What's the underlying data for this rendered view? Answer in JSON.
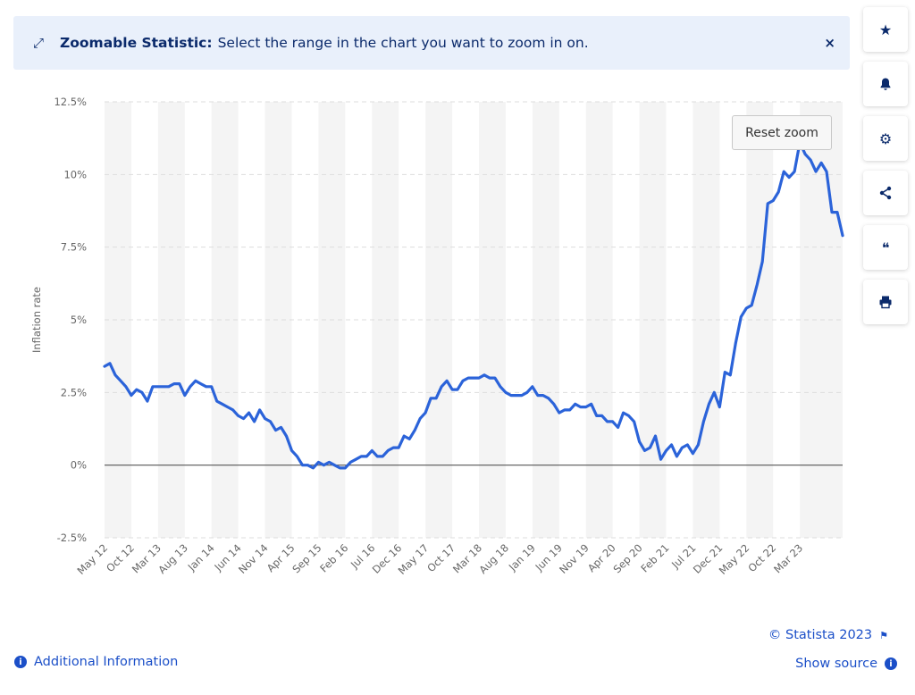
{
  "banner": {
    "icon": "zoom-arrows-icon",
    "bold_label": "Zoomable Statistic:",
    "message": "Select the range in the chart you want to zoom in on.",
    "close_label": "×"
  },
  "toolbar": {
    "buttons": [
      {
        "icon": "star-icon",
        "glyph": "★"
      },
      {
        "icon": "bell-icon",
        "glyph": "🔔"
      },
      {
        "icon": "gear-icon",
        "glyph": "⚙"
      },
      {
        "icon": "share-icon",
        "glyph": "⋖"
      },
      {
        "icon": "quote-icon",
        "glyph": "❝"
      },
      {
        "icon": "print-icon",
        "glyph": "⎙"
      }
    ]
  },
  "reset_zoom_label": "Reset zoom",
  "footer": {
    "additional_info": "Additional Information",
    "credit": "© Statista 2023",
    "show_source": "Show source",
    "info_glyph": "i",
    "flag_glyph": "⚑"
  },
  "colors": {
    "line": "#2b63d9",
    "brand": "#0b2a6b",
    "link": "#1b4fc8"
  },
  "chart_data": {
    "type": "line",
    "title": "",
    "ylabel": "Inflation rate",
    "xlabel": "",
    "ylim": [
      -2.5,
      12.5
    ],
    "yticks": [
      -2.5,
      0,
      2.5,
      5,
      7.5,
      10,
      12.5
    ],
    "ytick_labels": [
      "-2.5%",
      "0%",
      "2.5%",
      "5%",
      "7.5%",
      "10%",
      "12.5%"
    ],
    "xtick_labels": [
      "May 12",
      "Oct 12",
      "Mar 13",
      "Aug 13",
      "Jan 14",
      "Jun 14",
      "Nov 14",
      "Apr 15",
      "Sep 15",
      "Feb 16",
      "Jul 16",
      "Dec 16",
      "May 17",
      "Oct 17",
      "Mar 18",
      "Aug 18",
      "Jan 19",
      "Jun 19",
      "Nov 19",
      "Apr 20",
      "Sep 20",
      "Feb 21",
      "Jul 21",
      "Dec 21",
      "May 22",
      "Oct 22",
      "Mar 23"
    ],
    "xtick_step_months": 5,
    "grid": true,
    "series": [
      {
        "name": "Inflation rate",
        "start": "May 12",
        "values": [
          3.4,
          3.5,
          3.1,
          2.9,
          2.7,
          2.4,
          2.6,
          2.5,
          2.2,
          2.7,
          2.7,
          2.7,
          2.7,
          2.8,
          2.8,
          2.4,
          2.7,
          2.9,
          2.8,
          2.7,
          2.7,
          2.2,
          2.1,
          2.0,
          1.9,
          1.7,
          1.6,
          1.8,
          1.5,
          1.9,
          1.6,
          1.5,
          1.2,
          1.3,
          1.0,
          0.5,
          0.3,
          0.0,
          0.0,
          -0.1,
          0.1,
          0.0,
          0.1,
          0.0,
          -0.1,
          -0.1,
          0.1,
          0.2,
          0.3,
          0.3,
          0.5,
          0.3,
          0.3,
          0.5,
          0.6,
          0.6,
          1.0,
          0.9,
          1.2,
          1.6,
          1.8,
          2.3,
          2.3,
          2.7,
          2.9,
          2.6,
          2.6,
          2.9,
          3.0,
          3.0,
          3.0,
          3.1,
          3.0,
          3.0,
          2.7,
          2.5,
          2.4,
          2.4,
          2.4,
          2.5,
          2.7,
          2.4,
          2.4,
          2.3,
          2.1,
          1.8,
          1.9,
          1.9,
          2.1,
          2.0,
          2.0,
          2.1,
          1.7,
          1.7,
          1.5,
          1.5,
          1.3,
          1.8,
          1.7,
          1.5,
          0.8,
          0.5,
          0.6,
          1.0,
          0.2,
          0.5,
          0.7,
          0.3,
          0.6,
          0.7,
          0.4,
          0.7,
          1.5,
          2.1,
          2.5,
          2.0,
          3.2,
          3.1,
          4.2,
          5.1,
          5.4,
          5.5,
          6.2,
          7.0,
          9.0,
          9.1,
          9.4,
          10.1,
          9.9,
          10.1,
          11.1,
          10.7,
          10.5,
          10.1,
          10.4,
          10.1,
          8.7,
          8.7,
          7.9
        ]
      }
    ]
  }
}
